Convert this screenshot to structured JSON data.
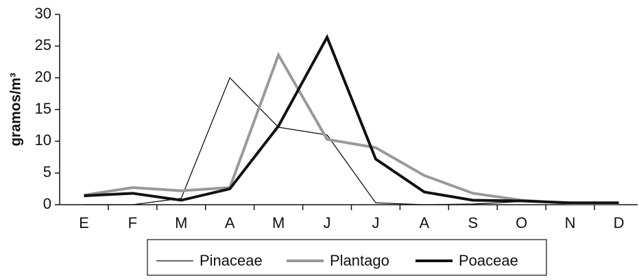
{
  "chart_data": {
    "type": "line",
    "y_label": "gramos/m³",
    "categories": [
      "E",
      "F",
      "M",
      "A",
      "M",
      "J",
      "J",
      "A",
      "S",
      "O",
      "N",
      "D"
    ],
    "series": [
      {
        "name": "Pinaceae",
        "color": "#111111",
        "width": 1.3,
        "values": [
          0,
          0,
          1,
          20,
          12.2,
          11,
          0.3,
          0,
          0.1,
          0.5,
          0.2,
          0.2
        ]
      },
      {
        "name": "Plantago",
        "color": "#999999",
        "width": 4,
        "values": [
          1.5,
          2.7,
          2.2,
          2.7,
          23.6,
          10.3,
          9,
          4.6,
          1.8,
          0.7,
          0.2,
          0.2
        ]
      },
      {
        "name": "Poaceae",
        "color": "#111111",
        "width": 4,
        "values": [
          1.4,
          1.8,
          0.7,
          2.5,
          12.4,
          26.4,
          7.2,
          2,
          0.7,
          0.6,
          0.3,
          0.3
        ]
      }
    ],
    "ylim": [
      0,
      30
    ],
    "yticks": [
      0,
      5,
      10,
      15,
      20,
      25,
      30
    ],
    "grid": false,
    "legend": "bottom"
  }
}
